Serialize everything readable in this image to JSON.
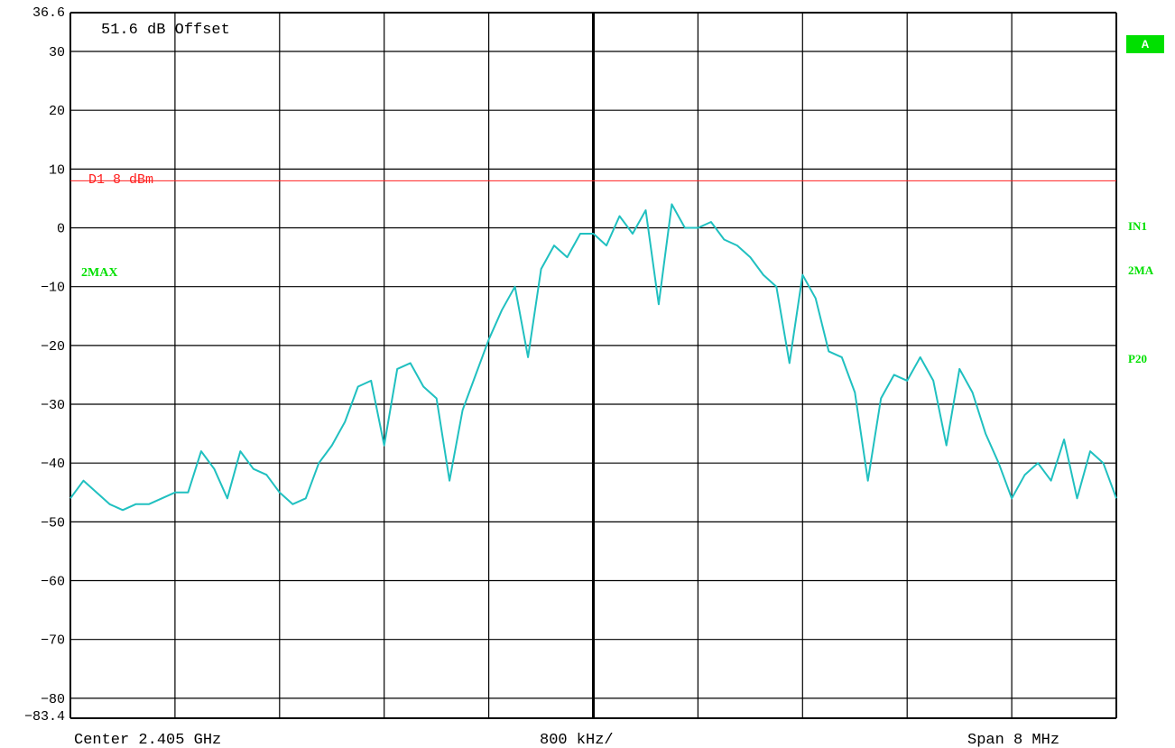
{
  "offset_text": "51.6 dB Offset",
  "display_line": {
    "label": "D1 8 dBm",
    "value_dbm": 8,
    "color": "#ff2020"
  },
  "trace_label": "2MAX",
  "side_labels": {
    "badge": "A",
    "in1": "IN1",
    "max": "2MA",
    "p20": "P20"
  },
  "bottom": {
    "center": "Center 2.405 GHz",
    "div": "800 kHz/",
    "span": "Span 8 MHz"
  },
  "colors": {
    "trace": "#20c0c0",
    "grid": "#000000",
    "labels_green": "#00e000",
    "ref_line": "#ff2020"
  },
  "chart_data": {
    "type": "line",
    "title": "",
    "xlabel": "",
    "ylabel": "",
    "ylim": [
      -83.4,
      36.6
    ],
    "xlim": [
      2.401,
      2.409
    ],
    "x_unit": "GHz",
    "y_tick_labels": [
      "36.6",
      "30",
      "20",
      "10",
      "0",
      "-10",
      "-20",
      "-30",
      "-40",
      "-50",
      "-60",
      "-70",
      "-80",
      "-83.4"
    ],
    "y_tick_values": [
      36.6,
      30,
      20,
      10,
      0,
      -10,
      -20,
      -30,
      -40,
      -50,
      -60,
      -70,
      -80,
      -83.4
    ],
    "grid": true,
    "series": [
      {
        "name": "2MAX",
        "x": [
          2.401,
          2.4011,
          2.4012,
          2.4013,
          2.4014,
          2.4015,
          2.4016,
          2.4017,
          2.4018,
          2.4019,
          2.402,
          2.4021,
          2.4022,
          2.4023,
          2.4024,
          2.4025,
          2.4026,
          2.4027,
          2.4028,
          2.4029,
          2.403,
          2.4031,
          2.4032,
          2.4033,
          2.4034,
          2.4035,
          2.4036,
          2.4037,
          2.4038,
          2.4039,
          2.404,
          2.4041,
          2.4042,
          2.4043,
          2.4044,
          2.4045,
          2.4046,
          2.4047,
          2.4048,
          2.4049,
          2.405,
          2.4051,
          2.4052,
          2.4053,
          2.4054,
          2.4055,
          2.4056,
          2.4057,
          2.4058,
          2.4059,
          2.406,
          2.4061,
          2.4062,
          2.4063,
          2.4064,
          2.4065,
          2.4066,
          2.4067,
          2.4068,
          2.4069,
          2.407,
          2.4071,
          2.4072,
          2.4073,
          2.4074,
          2.4075,
          2.4076,
          2.4077,
          2.4078,
          2.4079,
          2.408,
          2.4081,
          2.4082,
          2.4083,
          2.4084,
          2.4085,
          2.4086,
          2.4087,
          2.4088,
          2.4089,
          2.409
        ],
        "y": [
          -46,
          -43,
          -45,
          -47,
          -48,
          -47,
          -47,
          -46,
          -45,
          -45,
          -38,
          -41,
          -46,
          -38,
          -41,
          -42,
          -45,
          -47,
          -46,
          -40,
          -37,
          -33,
          -27,
          -26,
          -37,
          -24,
          -23,
          -27,
          -29,
          -43,
          -31,
          -25,
          -19,
          -14,
          -10,
          -22,
          -7,
          -3,
          -5,
          -1,
          -1,
          -3,
          2,
          -1,
          3,
          -13,
          4,
          0,
          0,
          1,
          -2,
          -3,
          -5,
          -8,
          -10,
          -23,
          -8,
          -12,
          -21,
          -22,
          -28,
          -43,
          -29,
          -25,
          -26,
          -22,
          -26,
          -37,
          -24,
          -28,
          -35,
          -40,
          -46,
          -42,
          -40,
          -43,
          -36,
          -46,
          -38,
          -40,
          -46
        ]
      }
    ]
  }
}
